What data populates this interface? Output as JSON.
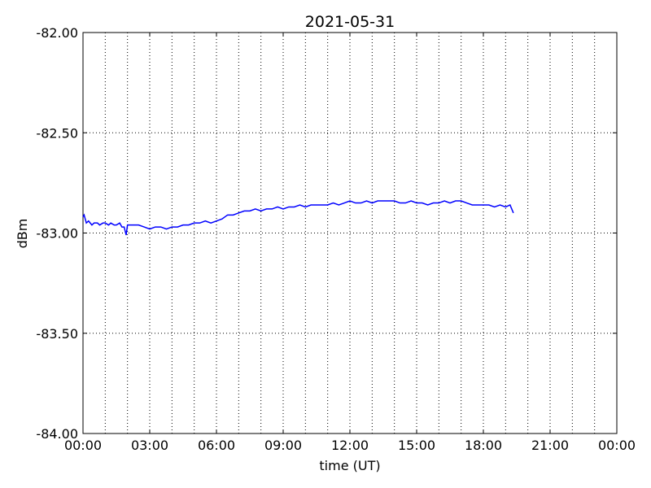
{
  "chart_data": {
    "type": "line",
    "title": "2021-05-31",
    "x_label": "time (UT)",
    "y_label": "dBm",
    "x": [
      0,
      0.05,
      0.15,
      0.25,
      0.4,
      0.5,
      0.65,
      0.75,
      0.9,
      1.0,
      1.15,
      1.25,
      1.4,
      1.5,
      1.65,
      1.75,
      1.85,
      1.94,
      2.0,
      2.25,
      2.5,
      2.75,
      3.0,
      3.25,
      3.5,
      3.75,
      4.0,
      4.25,
      4.5,
      4.75,
      5.0,
      5.25,
      5.5,
      5.75,
      6.0,
      6.25,
      6.5,
      6.75,
      7.0,
      7.25,
      7.5,
      7.75,
      8.0,
      8.25,
      8.5,
      8.75,
      9.0,
      9.25,
      9.5,
      9.75,
      10.0,
      10.25,
      10.5,
      10.75,
      11.0,
      11.25,
      11.5,
      11.75,
      12.0,
      12.25,
      12.5,
      12.75,
      13.0,
      13.25,
      13.5,
      13.75,
      14.0,
      14.25,
      14.5,
      14.75,
      15.0,
      15.25,
      15.5,
      15.75,
      16.0,
      16.25,
      16.5,
      16.75,
      17.0,
      17.25,
      17.5,
      17.75,
      18.0,
      18.25,
      18.5,
      18.75,
      19.0,
      19.2,
      19.35
    ],
    "series": [
      {
        "name": "dBm",
        "color": "#0000ff",
        "values": [
          -82.92,
          -82.91,
          -82.95,
          -82.94,
          -82.96,
          -82.95,
          -82.95,
          -82.96,
          -82.95,
          -82.95,
          -82.96,
          -82.95,
          -82.96,
          -82.96,
          -82.95,
          -82.97,
          -82.97,
          -83.01,
          -82.96,
          -82.96,
          -82.96,
          -82.97,
          -82.98,
          -82.97,
          -82.97,
          -82.98,
          -82.97,
          -82.97,
          -82.96,
          -82.96,
          -82.95,
          -82.95,
          -82.94,
          -82.95,
          -82.94,
          -82.93,
          -82.91,
          -82.91,
          -82.9,
          -82.89,
          -82.89,
          -82.88,
          -82.89,
          -82.88,
          -82.88,
          -82.87,
          -82.88,
          -82.87,
          -82.87,
          -82.86,
          -82.87,
          -82.86,
          -82.86,
          -82.86,
          -82.86,
          -82.85,
          -82.86,
          -82.85,
          -82.84,
          -82.85,
          -82.85,
          -82.84,
          -82.85,
          -82.84,
          -82.84,
          -82.84,
          -82.84,
          -82.85,
          -82.85,
          -82.84,
          -82.85,
          -82.85,
          -82.86,
          -82.85,
          -82.85,
          -82.84,
          -82.85,
          -82.84,
          -82.84,
          -82.85,
          -82.86,
          -82.86,
          -82.86,
          -82.86,
          -82.87,
          -82.86,
          -82.87,
          -82.86,
          -82.9
        ]
      }
    ],
    "xlim": [
      0,
      24
    ],
    "xticks": [
      {
        "value": 0,
        "label": "00:00"
      },
      {
        "value": 3,
        "label": "03:00"
      },
      {
        "value": 6,
        "label": "06:00"
      },
      {
        "value": 9,
        "label": "09:00"
      },
      {
        "value": 12,
        "label": "12:00"
      },
      {
        "value": 15,
        "label": "15:00"
      },
      {
        "value": 18,
        "label": "18:00"
      },
      {
        "value": 21,
        "label": "21:00"
      },
      {
        "value": 24,
        "label": "00:00"
      }
    ],
    "xminorticks": [
      1,
      2,
      4,
      5,
      7,
      8,
      10,
      11,
      13,
      14,
      16,
      17,
      19,
      20,
      22,
      23
    ],
    "ylim": [
      -84,
      -82
    ],
    "yticks": [
      {
        "value": -84,
        "label": "-84.00"
      },
      {
        "value": -83.5,
        "label": "-83.50"
      },
      {
        "value": -83,
        "label": "-83.00"
      },
      {
        "value": -82.5,
        "label": "-82.50"
      },
      {
        "value": -82,
        "label": "-82.00"
      }
    ],
    "grid": true
  }
}
